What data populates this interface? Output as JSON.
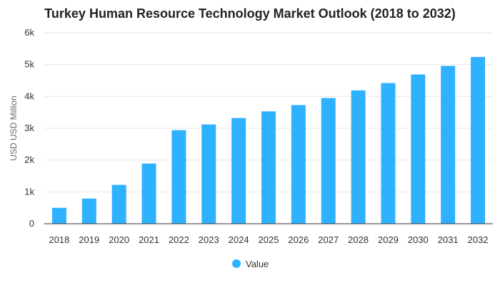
{
  "chart_data": {
    "type": "bar",
    "title": "Turkey Human Resource Technology Market Outlook (2018 to 2032)",
    "xlabel": "",
    "ylabel": "USD USD Million",
    "categories": [
      "2018",
      "2019",
      "2020",
      "2021",
      "2022",
      "2023",
      "2024",
      "2025",
      "2026",
      "2027",
      "2028",
      "2029",
      "2030",
      "2031",
      "2032"
    ],
    "series": [
      {
        "name": "Value",
        "color": "#2eb2ff",
        "values": [
          500,
          790,
          1220,
          1890,
          2940,
          3120,
          3320,
          3530,
          3730,
          3950,
          4190,
          4420,
          4690,
          4960,
          5240
        ]
      }
    ],
    "ylim": [
      0,
      6000
    ],
    "yticks": [
      0,
      1000,
      2000,
      3000,
      4000,
      5000,
      6000
    ],
    "ytick_labels": [
      "0",
      "1k",
      "2k",
      "3k",
      "4k",
      "5k",
      "6k"
    ],
    "grid": true,
    "legend_position": "bottom-center"
  }
}
